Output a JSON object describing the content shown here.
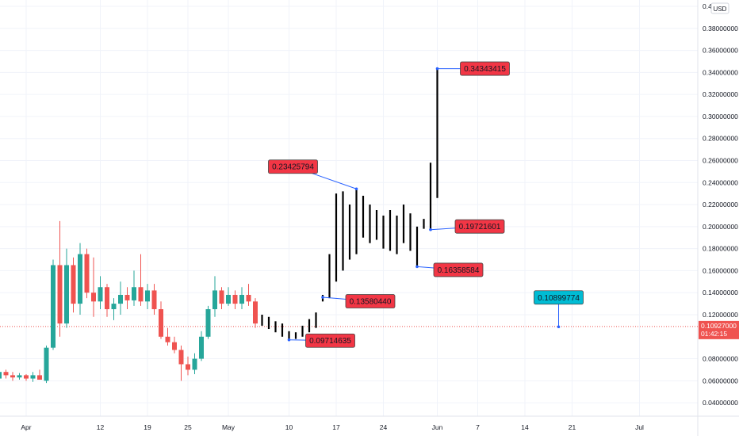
{
  "chart_data": {
    "type": "candlestick",
    "currency": "USD",
    "y_axis": {
      "min": 0.03,
      "max": 0.4,
      "ticks": [
        {
          "value": 0.04,
          "label": "0.04000000"
        },
        {
          "value": 0.06,
          "label": "0.06000000"
        },
        {
          "value": 0.08,
          "label": "0.08000000"
        },
        {
          "value": 0.12,
          "label": "0.12000000"
        },
        {
          "value": 0.14,
          "label": "0.14000000"
        },
        {
          "value": 0.16,
          "label": "0.16000000"
        },
        {
          "value": 0.18,
          "label": "0.18000000"
        },
        {
          "value": 0.2,
          "label": "0.20000000"
        },
        {
          "value": 0.22,
          "label": "0.22000000"
        },
        {
          "value": 0.24,
          "label": "0.24000000"
        },
        {
          "value": 0.26,
          "label": "0.26000000"
        },
        {
          "value": 0.28,
          "label": "0.28000000"
        },
        {
          "value": 0.3,
          "label": "0.30000000"
        },
        {
          "value": 0.32,
          "label": "0.32000000"
        },
        {
          "value": 0.34,
          "label": "0.34000000"
        },
        {
          "value": 0.36,
          "label": "0.36000000"
        },
        {
          "value": 0.38,
          "label": "0.38000000"
        },
        {
          "value": 0.4,
          "label": "0.4"
        }
      ]
    },
    "x_axis": {
      "ticks": [
        {
          "day": 0,
          "label": "Apr"
        },
        {
          "day": 11,
          "label": "12"
        },
        {
          "day": 18,
          "label": "19"
        },
        {
          "day": 24,
          "label": "25"
        },
        {
          "day": 30,
          "label": "May"
        },
        {
          "day": 39,
          "label": "10"
        },
        {
          "day": 46,
          "label": "17"
        },
        {
          "day": 53,
          "label": "24"
        },
        {
          "day": 61,
          "label": "Jun"
        },
        {
          "day": 67,
          "label": "7"
        },
        {
          "day": 74,
          "label": "14"
        },
        {
          "day": 81,
          "label": "21"
        },
        {
          "day": 91,
          "label": "Jul"
        }
      ]
    },
    "candles": [
      {
        "day": -4,
        "o": 0.062,
        "h": 0.072,
        "l": 0.052,
        "c": 0.068
      },
      {
        "day": -3,
        "o": 0.068,
        "h": 0.07,
        "l": 0.062,
        "c": 0.065
      },
      {
        "day": -2,
        "o": 0.065,
        "h": 0.068,
        "l": 0.06,
        "c": 0.063
      },
      {
        "day": -1,
        "o": 0.063,
        "h": 0.067,
        "l": 0.061,
        "c": 0.065
      },
      {
        "day": 0,
        "o": 0.065,
        "h": 0.066,
        "l": 0.06,
        "c": 0.062
      },
      {
        "day": 1,
        "o": 0.062,
        "h": 0.068,
        "l": 0.059,
        "c": 0.065
      },
      {
        "day": 2,
        "o": 0.065,
        "h": 0.07,
        "l": 0.061,
        "c": 0.061
      },
      {
        "day": 3,
        "o": 0.06,
        "h": 0.092,
        "l": 0.058,
        "c": 0.09
      },
      {
        "day": 4,
        "o": 0.09,
        "h": 0.17,
        "l": 0.088,
        "c": 0.165
      },
      {
        "day": 5,
        "o": 0.165,
        "h": 0.205,
        "l": 0.1,
        "c": 0.112
      },
      {
        "day": 6,
        "o": 0.112,
        "h": 0.18,
        "l": 0.108,
        "c": 0.165
      },
      {
        "day": 7,
        "o": 0.165,
        "h": 0.172,
        "l": 0.122,
        "c": 0.13
      },
      {
        "day": 8,
        "o": 0.13,
        "h": 0.185,
        "l": 0.12,
        "c": 0.175
      },
      {
        "day": 9,
        "o": 0.175,
        "h": 0.18,
        "l": 0.135,
        "c": 0.14
      },
      {
        "day": 10,
        "o": 0.14,
        "h": 0.172,
        "l": 0.118,
        "c": 0.132
      },
      {
        "day": 11,
        "o": 0.132,
        "h": 0.155,
        "l": 0.125,
        "c": 0.145
      },
      {
        "day": 12,
        "o": 0.145,
        "h": 0.148,
        "l": 0.118,
        "c": 0.125
      },
      {
        "day": 13,
        "o": 0.125,
        "h": 0.135,
        "l": 0.115,
        "c": 0.13
      },
      {
        "day": 14,
        "o": 0.13,
        "h": 0.15,
        "l": 0.12,
        "c": 0.138
      },
      {
        "day": 15,
        "o": 0.138,
        "h": 0.145,
        "l": 0.125,
        "c": 0.133
      },
      {
        "day": 16,
        "o": 0.133,
        "h": 0.16,
        "l": 0.128,
        "c": 0.145
      },
      {
        "day": 17,
        "o": 0.145,
        "h": 0.175,
        "l": 0.128,
        "c": 0.132
      },
      {
        "day": 18,
        "o": 0.132,
        "h": 0.148,
        "l": 0.125,
        "c": 0.142
      },
      {
        "day": 19,
        "o": 0.142,
        "h": 0.148,
        "l": 0.12,
        "c": 0.125
      },
      {
        "day": 20,
        "o": 0.125,
        "h": 0.132,
        "l": 0.098,
        "c": 0.1
      },
      {
        "day": 21,
        "o": 0.1,
        "h": 0.108,
        "l": 0.092,
        "c": 0.095
      },
      {
        "day": 22,
        "o": 0.095,
        "h": 0.1,
        "l": 0.085,
        "c": 0.088
      },
      {
        "day": 23,
        "o": 0.088,
        "h": 0.092,
        "l": 0.06,
        "c": 0.075
      },
      {
        "day": 24,
        "o": 0.075,
        "h": 0.082,
        "l": 0.065,
        "c": 0.07
      },
      {
        "day": 25,
        "o": 0.07,
        "h": 0.085,
        "l": 0.066,
        "c": 0.08
      },
      {
        "day": 26,
        "o": 0.08,
        "h": 0.105,
        "l": 0.078,
        "c": 0.1
      },
      {
        "day": 27,
        "o": 0.1,
        "h": 0.128,
        "l": 0.098,
        "c": 0.125
      },
      {
        "day": 28,
        "o": 0.125,
        "h": 0.155,
        "l": 0.118,
        "c": 0.142
      },
      {
        "day": 29,
        "o": 0.142,
        "h": 0.145,
        "l": 0.125,
        "c": 0.13
      },
      {
        "day": 30,
        "o": 0.13,
        "h": 0.145,
        "l": 0.128,
        "c": 0.138
      },
      {
        "day": 31,
        "o": 0.138,
        "h": 0.142,
        "l": 0.125,
        "c": 0.13
      },
      {
        "day": 32,
        "o": 0.13,
        "h": 0.145,
        "l": 0.125,
        "c": 0.138
      },
      {
        "day": 33,
        "o": 0.138,
        "h": 0.148,
        "l": 0.128,
        "c": 0.132
      },
      {
        "day": 34,
        "o": 0.132,
        "h": 0.135,
        "l": 0.108,
        "c": 0.112
      }
    ],
    "bars": [
      {
        "day": 35,
        "h": 0.12,
        "l": 0.11
      },
      {
        "day": 36,
        "h": 0.118,
        "l": 0.107
      },
      {
        "day": 37,
        "h": 0.114,
        "l": 0.104
      },
      {
        "day": 38,
        "h": 0.112,
        "l": 0.1
      },
      {
        "day": 39,
        "h": 0.105,
        "l": 0.097
      },
      {
        "day": 40,
        "h": 0.104,
        "l": 0.098
      },
      {
        "day": 41,
        "h": 0.11,
        "l": 0.1
      },
      {
        "day": 42,
        "h": 0.116,
        "l": 0.104
      },
      {
        "day": 43,
        "h": 0.122,
        "l": 0.108
      },
      {
        "day": 44,
        "h": 0.138,
        "l": 0.132
      },
      {
        "day": 45,
        "h": 0.175,
        "l": 0.135
      },
      {
        "day": 46,
        "h": 0.23,
        "l": 0.15
      },
      {
        "day": 47,
        "h": 0.232,
        "l": 0.16
      },
      {
        "day": 48,
        "h": 0.22,
        "l": 0.17
      },
      {
        "day": 49,
        "h": 0.234,
        "l": 0.175
      },
      {
        "day": 50,
        "h": 0.228,
        "l": 0.19
      },
      {
        "day": 51,
        "h": 0.22,
        "l": 0.185
      },
      {
        "day": 52,
        "h": 0.215,
        "l": 0.188
      },
      {
        "day": 53,
        "h": 0.21,
        "l": 0.18
      },
      {
        "day": 54,
        "h": 0.215,
        "l": 0.178
      },
      {
        "day": 55,
        "h": 0.21,
        "l": 0.175
      },
      {
        "day": 56,
        "h": 0.22,
        "l": 0.185
      },
      {
        "day": 57,
        "h": 0.212,
        "l": 0.178
      },
      {
        "day": 58,
        "h": 0.2,
        "l": 0.164
      },
      {
        "day": 59,
        "h": 0.207,
        "l": 0.198
      },
      {
        "day": 60,
        "h": 0.258,
        "l": 0.197
      },
      {
        "day": 61,
        "h": 0.343,
        "l": 0.226
      }
    ],
    "annotations": [
      {
        "label": "0.34343415",
        "style": "red",
        "point_day": 61,
        "point_value": 0.34343415
      },
      {
        "label": "0.23425794",
        "style": "red",
        "point_day": 49,
        "point_value": 0.23425794
      },
      {
        "label": "0.19721601",
        "style": "red",
        "point_day": 60,
        "point_value": 0.19721601
      },
      {
        "label": "0.16358584",
        "style": "red",
        "point_day": 58,
        "point_value": 0.16358584
      },
      {
        "label": "0.13580440",
        "style": "red",
        "point_day": 44,
        "point_value": 0.1358044
      },
      {
        "label": "0.09714635",
        "style": "red",
        "point_day": 39,
        "point_value": 0.09714635
      },
      {
        "label": "0.10899774",
        "style": "cyan",
        "point_day": 79,
        "point_value": 0.10899774
      }
    ],
    "current_price": {
      "value": 0.10927,
      "label": "0.10927000",
      "countdown": "01:42:15"
    },
    "colors": {
      "up": "#26a69a",
      "down": "#ef5350",
      "bar": "#000000",
      "annotation_red": "#f23645",
      "annotation_cyan": "#00bcd4",
      "callout_line": "#2962ff",
      "grid": "#f0f3fa",
      "axis_text": "#131722"
    }
  }
}
